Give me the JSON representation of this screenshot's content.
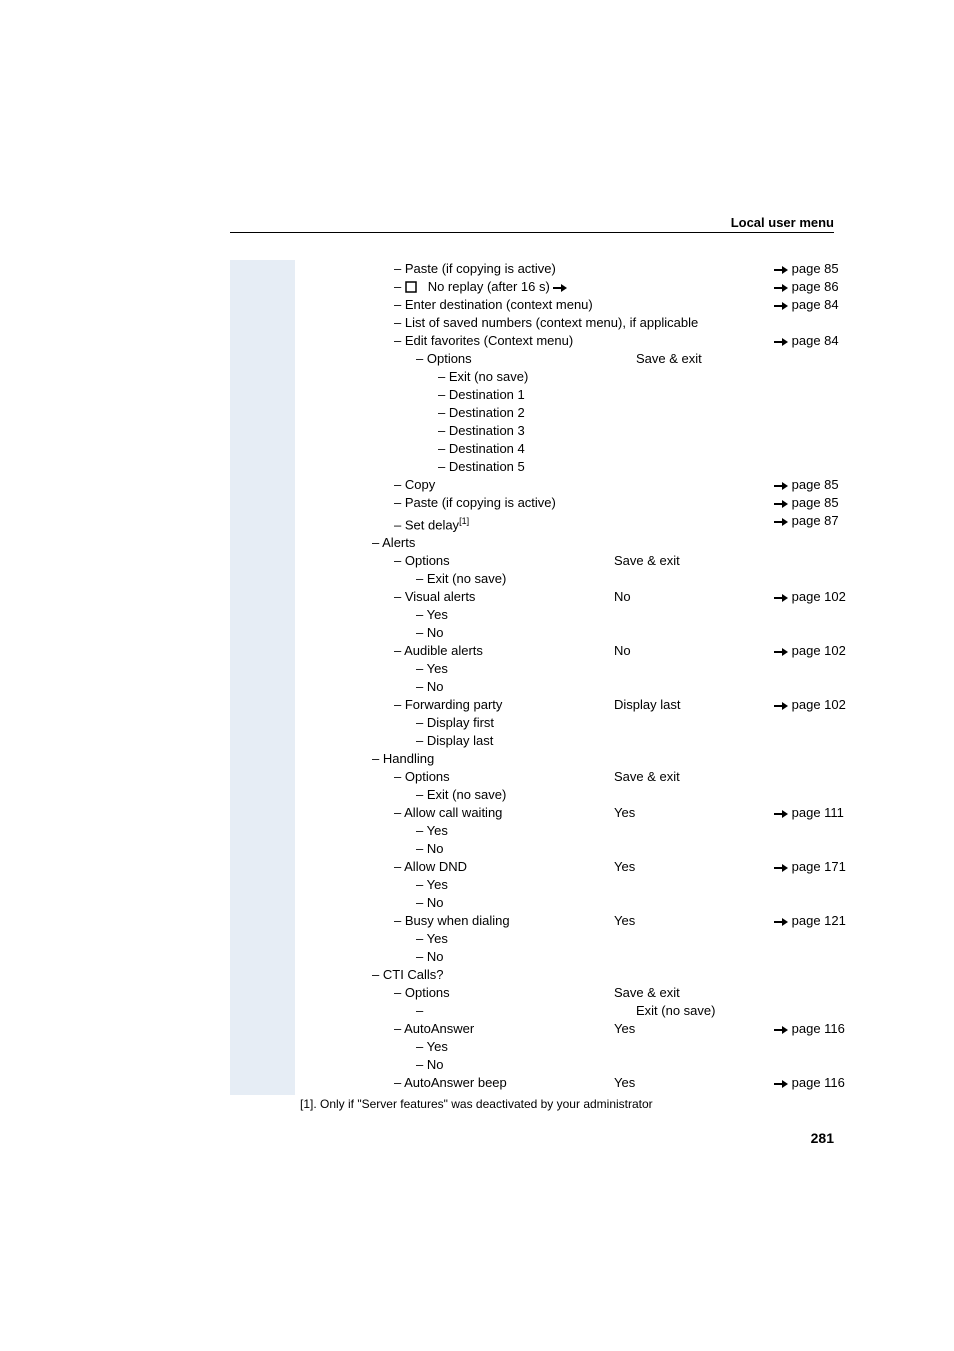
{
  "header": {
    "title": "Local user menu"
  },
  "pagenum": "281",
  "footnote": "[1]. Only if \"Server features\" was deactivated by your administrator",
  "colors": {
    "left_band": "#e6edf5",
    "rule": "#000000",
    "text": "#000000"
  },
  "rows": [
    {
      "indent": 2,
      "bullet": "–",
      "label": "Paste (if copying is active)",
      "value": "",
      "ref": "page 85"
    },
    {
      "indent": 2,
      "bullet": "–",
      "checkbox": true,
      "label": "No replay (after 16 s)",
      "trailing_arrow": true,
      "value": "",
      "ref": "page 86"
    },
    {
      "indent": 2,
      "bullet": "–",
      "label": "Enter destination (context menu)",
      "value": "",
      "ref": "page 84"
    },
    {
      "indent": 2,
      "bullet": "–",
      "label": "List of saved numbers (context menu), if applicable",
      "value": "",
      "ref": ""
    },
    {
      "indent": 2,
      "bullet": "–",
      "label": "Edit favorites (Context menu)",
      "value": "",
      "ref": "page 84"
    },
    {
      "indent": 3,
      "bullet": "–",
      "label": "Options",
      "value": "Save & exit",
      "ref": ""
    },
    {
      "indent": 3,
      "bullet": "–",
      "label": "Exit (no save)",
      "value": "",
      "ref": "",
      "extra_indent": true
    },
    {
      "indent": 3,
      "bullet": "–",
      "label": "Destination 1",
      "value": "",
      "ref": "",
      "extra_indent": true
    },
    {
      "indent": 3,
      "bullet": "–",
      "label": "Destination 2",
      "value": "",
      "ref": "",
      "extra_indent": true
    },
    {
      "indent": 3,
      "bullet": "–",
      "label": "Destination 3",
      "value": "",
      "ref": "",
      "extra_indent": true
    },
    {
      "indent": 3,
      "bullet": "–",
      "label": "Destination 4",
      "value": "",
      "ref": "",
      "extra_indent": true
    },
    {
      "indent": 3,
      "bullet": "–",
      "label": "Destination 5",
      "value": "",
      "ref": "",
      "extra_indent": true
    },
    {
      "indent": 2,
      "bullet": "–",
      "label": "Copy",
      "value": "",
      "ref": "page 85"
    },
    {
      "indent": 2,
      "bullet": "–",
      "label": "Paste (if copying is active)",
      "value": "",
      "ref": "page 85"
    },
    {
      "indent": 2,
      "bullet": "–",
      "label": "Set delay",
      "sup": "[1]",
      "value": "",
      "ref": "page 87"
    },
    {
      "indent": 1,
      "bullet": "–",
      "label": "Alerts",
      "value": "",
      "ref": ""
    },
    {
      "indent": 2,
      "bullet": "–",
      "label": "Options",
      "value": "Save & exit",
      "ref": ""
    },
    {
      "indent": 3,
      "bullet": "–",
      "label": "Exit (no save)",
      "value": "",
      "ref": ""
    },
    {
      "indent": 2,
      "bullet": "–",
      "label": "Visual alerts",
      "value": "No",
      "ref": "page 102"
    },
    {
      "indent": 3,
      "bullet": "–",
      "label": "Yes",
      "value": "",
      "ref": ""
    },
    {
      "indent": 3,
      "bullet": "–",
      "label": "No",
      "value": "",
      "ref": ""
    },
    {
      "indent": 2,
      "bullet": "–",
      "label": "Audible alerts",
      "value": "No",
      "ref": "page 102"
    },
    {
      "indent": 3,
      "bullet": "–",
      "label": "Yes",
      "value": "",
      "ref": ""
    },
    {
      "indent": 3,
      "bullet": "–",
      "label": "No",
      "value": "",
      "ref": ""
    },
    {
      "indent": 2,
      "bullet": "–",
      "label": "Forwarding party",
      "value": "Display last",
      "ref": "page 102"
    },
    {
      "indent": 3,
      "bullet": "–",
      "label": "Display first",
      "value": "",
      "ref": ""
    },
    {
      "indent": 3,
      "bullet": "–",
      "label": "Display last",
      "value": "",
      "ref": ""
    },
    {
      "indent": 1,
      "bullet": "–",
      "label": "Handling",
      "value": "",
      "ref": ""
    },
    {
      "indent": 2,
      "bullet": "–",
      "label": "Options",
      "value": "Save & exit",
      "ref": ""
    },
    {
      "indent": 3,
      "bullet": "–",
      "label": "Exit (no save)",
      "value": "",
      "ref": ""
    },
    {
      "indent": 2,
      "bullet": "–",
      "label": "Allow call waiting",
      "value": "Yes",
      "ref": "page 111"
    },
    {
      "indent": 3,
      "bullet": "–",
      "label": "Yes",
      "value": "",
      "ref": ""
    },
    {
      "indent": 3,
      "bullet": "–",
      "label": "No",
      "value": "",
      "ref": ""
    },
    {
      "indent": 2,
      "bullet": "–",
      "label": "Allow DND",
      "value": "Yes",
      "ref": "page 171"
    },
    {
      "indent": 3,
      "bullet": "–",
      "label": "Yes",
      "value": "",
      "ref": ""
    },
    {
      "indent": 3,
      "bullet": "–",
      "label": "No",
      "value": "",
      "ref": ""
    },
    {
      "indent": 2,
      "bullet": "–",
      "label": "Busy when dialing",
      "value": "Yes",
      "ref": "page 121"
    },
    {
      "indent": 3,
      "bullet": "–",
      "label": "Yes",
      "value": "",
      "ref": ""
    },
    {
      "indent": 3,
      "bullet": "–",
      "label": "No",
      "value": "",
      "ref": ""
    },
    {
      "indent": 1,
      "bullet": "–",
      "label": "CTI Calls?",
      "value": "",
      "ref": ""
    },
    {
      "indent": 2,
      "bullet": "–",
      "label": "Options",
      "value": "Save & exit",
      "ref": ""
    },
    {
      "indent": 3,
      "bullet": "–",
      "label": "",
      "value": "Exit (no save)",
      "ref": ""
    },
    {
      "indent": 2,
      "bullet": "–",
      "label": "AutoAnswer",
      "value": "Yes",
      "ref": "page 116"
    },
    {
      "indent": 3,
      "bullet": "–",
      "label": "Yes",
      "value": "",
      "ref": ""
    },
    {
      "indent": 3,
      "bullet": "–",
      "label": "No",
      "value": "",
      "ref": ""
    },
    {
      "indent": 2,
      "bullet": "–",
      "label": "AutoAnswer beep",
      "value": "Yes",
      "ref": "page 116"
    }
  ]
}
